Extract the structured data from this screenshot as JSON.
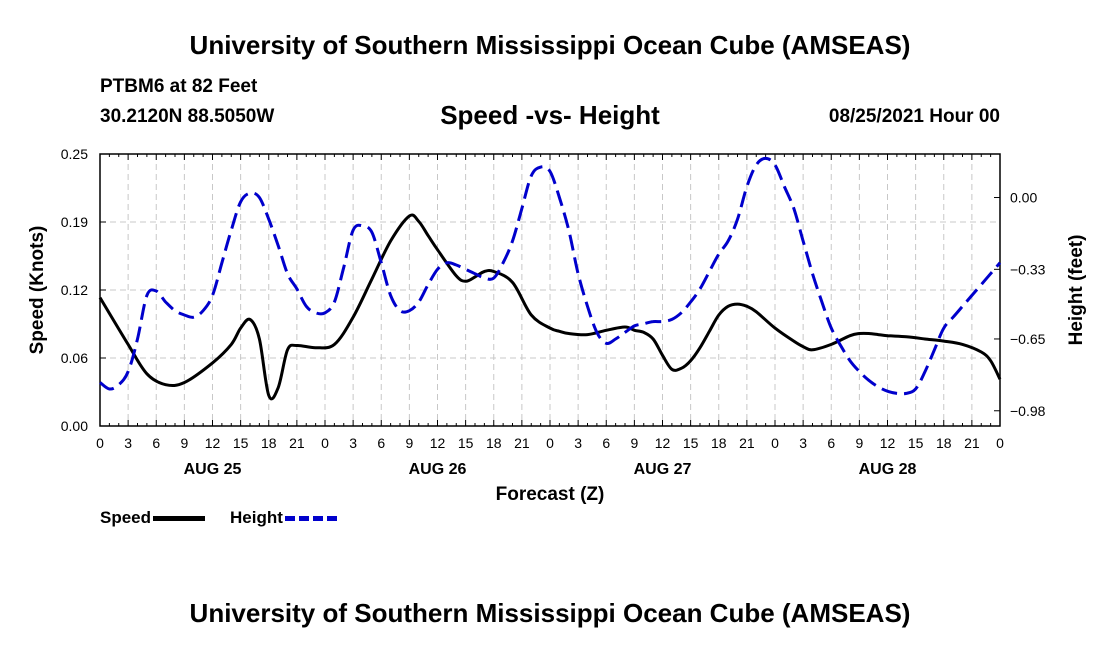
{
  "header": {
    "title_top": "University of Southern Mississippi Ocean Cube (AMSEAS)",
    "station": "PTBM6 at 82 Feet",
    "coords": "30.2120N  88.5050W",
    "chart_title": "Speed -vs- Height",
    "datetime": "08/25/2021 Hour 00"
  },
  "footer": {
    "title_bottom": "University of Southern Mississippi Ocean Cube (AMSEAS)"
  },
  "legend": {
    "speed_label": "Speed",
    "height_label": "Height",
    "speed_color": "#000000",
    "height_color": "#0000cc"
  },
  "chart_data": {
    "type": "line",
    "title": "Speed -vs- Height",
    "xlabel": "Forecast (Z)",
    "ylabel_left": "Speed (Knots)",
    "ylabel_right": "Height (feet)",
    "x_range_hours": [
      0,
      96
    ],
    "x_tick_step_hours": 3,
    "x_tick_labels": [
      "0",
      "3",
      "6",
      "9",
      "12",
      "15",
      "18",
      "21",
      "0",
      "3",
      "6",
      "9",
      "12",
      "15",
      "18",
      "21",
      "0",
      "3",
      "6",
      "9",
      "12",
      "15",
      "18",
      "21",
      "0",
      "3",
      "6",
      "9",
      "12",
      "15",
      "18",
      "21",
      "0"
    ],
    "day_labels": [
      {
        "hour": 12,
        "label": "AUG 25"
      },
      {
        "hour": 36,
        "label": "AUG 26"
      },
      {
        "hour": 60,
        "label": "AUG 27"
      },
      {
        "hour": 84,
        "label": "AUG 28"
      }
    ],
    "ylim_left": [
      0,
      0.25
    ],
    "yticks_left": [
      "0.00",
      "0.06",
      "0.12",
      "0.19",
      "0.25"
    ],
    "ylim_right": [
      -1.05,
      0.2
    ],
    "yticks_right": [
      {
        "value": 0.0,
        "label": "0.00"
      },
      {
        "value": -0.33,
        "label": "−0.33"
      },
      {
        "value": -0.65,
        "label": "−0.65"
      },
      {
        "value": -0.98,
        "label": "−0.98"
      }
    ],
    "grid": true,
    "series": [
      {
        "name": "Speed",
        "axis": "left",
        "style": "solid",
        "color": "#000000",
        "x": [
          0,
          3,
          5,
          7,
          9,
          12,
          14,
          15,
          16,
          17,
          18,
          19,
          20,
          21,
          23,
          25,
          27,
          29,
          31,
          33,
          34,
          35,
          36,
          38,
          39,
          40,
          41,
          42,
          44,
          46,
          48,
          49,
          50,
          52,
          54,
          56,
          57,
          58,
          59,
          60,
          61,
          62,
          63,
          64,
          65,
          66,
          67,
          68,
          69,
          70,
          72,
          74,
          75,
          76,
          78,
          80,
          81,
          82,
          83,
          84,
          86,
          88,
          90,
          92,
          94,
          95,
          96
        ],
        "values": [
          0.118,
          0.075,
          0.048,
          0.038,
          0.04,
          0.058,
          0.075,
          0.09,
          0.098,
          0.08,
          0.028,
          0.035,
          0.07,
          0.074,
          0.072,
          0.075,
          0.1,
          0.135,
          0.17,
          0.193,
          0.188,
          0.175,
          0.162,
          0.138,
          0.133,
          0.137,
          0.142,
          0.142,
          0.132,
          0.102,
          0.09,
          0.087,
          0.085,
          0.084,
          0.088,
          0.091,
          0.088,
          0.086,
          0.08,
          0.065,
          0.052,
          0.053,
          0.06,
          0.072,
          0.087,
          0.102,
          0.11,
          0.112,
          0.11,
          0.105,
          0.09,
          0.078,
          0.073,
          0.07,
          0.075,
          0.083,
          0.085,
          0.085,
          0.084,
          0.083,
          0.082,
          0.08,
          0.078,
          0.075,
          0.068,
          0.06,
          0.043
        ]
      },
      {
        "name": "Height",
        "axis": "right",
        "style": "dashed",
        "color": "#0000cc",
        "x": [
          0,
          1,
          2,
          3,
          4,
          5,
          6,
          7,
          8,
          9,
          10,
          11,
          12,
          13,
          14,
          15,
          16,
          17,
          18,
          19,
          20,
          21,
          22,
          23,
          24,
          25,
          26,
          27,
          28,
          29,
          30,
          31,
          32,
          33,
          34,
          35,
          36,
          37,
          38,
          39,
          40,
          41,
          42,
          43,
          44,
          45,
          46,
          47,
          48,
          49,
          50,
          51,
          52,
          53,
          54,
          55,
          56,
          57,
          58,
          59,
          60,
          61,
          62,
          63,
          64,
          65,
          66,
          67,
          68,
          69,
          70,
          71,
          72,
          73,
          74,
          75,
          76,
          77,
          78,
          79,
          80,
          81,
          82,
          83,
          84,
          85,
          86,
          87,
          88,
          89,
          90,
          91,
          92,
          93,
          94,
          95,
          96
        ],
        "values": [
          -0.85,
          -0.88,
          -0.86,
          -0.8,
          -0.65,
          -0.45,
          -0.43,
          -0.48,
          -0.52,
          -0.54,
          -0.55,
          -0.52,
          -0.45,
          -0.3,
          -0.15,
          -0.02,
          0.02,
          0.0,
          -0.1,
          -0.22,
          -0.35,
          -0.42,
          -0.5,
          -0.53,
          -0.53,
          -0.48,
          -0.32,
          -0.15,
          -0.13,
          -0.16,
          -0.3,
          -0.45,
          -0.52,
          -0.52,
          -0.48,
          -0.4,
          -0.33,
          -0.3,
          -0.31,
          -0.33,
          -0.35,
          -0.37,
          -0.37,
          -0.3,
          -0.2,
          -0.05,
          0.1,
          0.14,
          0.12,
          0.0,
          -0.15,
          -0.35,
          -0.5,
          -0.62,
          -0.67,
          -0.65,
          -0.62,
          -0.59,
          -0.58,
          -0.57,
          -0.57,
          -0.56,
          -0.53,
          -0.48,
          -0.42,
          -0.34,
          -0.26,
          -0.2,
          -0.1,
          0.05,
          0.15,
          0.18,
          0.15,
          0.05,
          -0.05,
          -0.2,
          -0.35,
          -0.48,
          -0.6,
          -0.68,
          -0.75,
          -0.8,
          -0.84,
          -0.87,
          -0.89,
          -0.9,
          -0.9,
          -0.88,
          -0.8,
          -0.7,
          -0.6,
          -0.55,
          -0.5,
          -0.45,
          -0.4,
          -0.35,
          -0.3
        ]
      }
    ]
  }
}
